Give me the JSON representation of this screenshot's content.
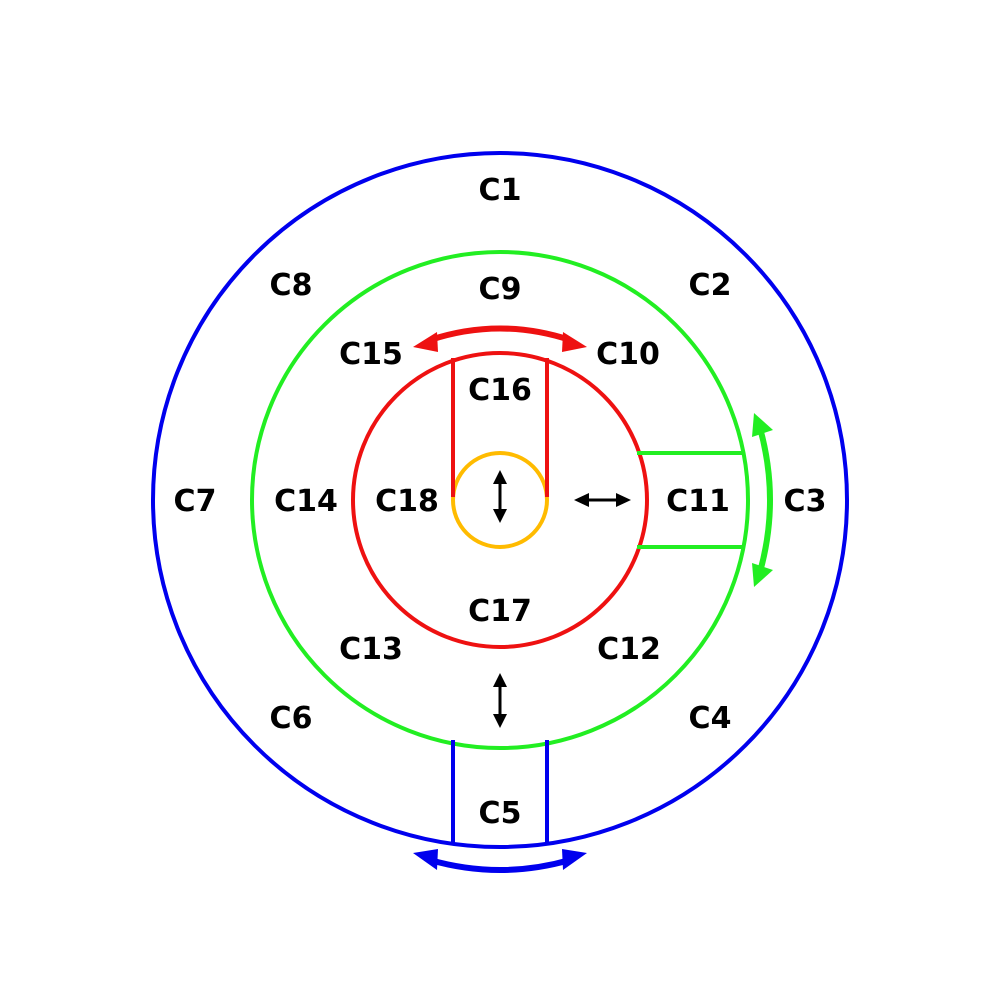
{
  "colors": {
    "outer": "#0000ee",
    "middle": "#22ee22",
    "inner": "#ee1111",
    "core": "#ffbb00",
    "arrow": "#000000",
    "background": "#ffffff"
  },
  "rings": [
    {
      "id": "outer-ring",
      "color_key": "outer"
    },
    {
      "id": "middle-ring",
      "color_key": "middle"
    },
    {
      "id": "inner-ring",
      "color_key": "inner"
    },
    {
      "id": "core-circle",
      "color_key": "core"
    }
  ],
  "cells": {
    "c1": "C1",
    "c2": "C2",
    "c3": "C3",
    "c4": "C4",
    "c5": "C5",
    "c6": "C6",
    "c7": "C7",
    "c8": "C8",
    "c9": "C9",
    "c10": "C10",
    "c11": "C11",
    "c12": "C12",
    "c13": "C13",
    "c14": "C14",
    "c15": "C15",
    "c16": "C16",
    "c17": "C17",
    "c18": "C18"
  },
  "arrows": [
    {
      "id": "rotation-arrow-red",
      "kind": "curved-double",
      "color_key": "inner"
    },
    {
      "id": "rotation-arrow-green",
      "kind": "curved-double",
      "color_key": "middle"
    },
    {
      "id": "rotation-arrow-blue",
      "kind": "curved-double",
      "color_key": "outer"
    },
    {
      "id": "vertical-arrow-core",
      "kind": "straight-double",
      "color_key": "arrow"
    },
    {
      "id": "horizontal-arrow-inner",
      "kind": "straight-double",
      "color_key": "arrow"
    },
    {
      "id": "vertical-arrow-lower",
      "kind": "straight-double",
      "color_key": "arrow"
    }
  ]
}
